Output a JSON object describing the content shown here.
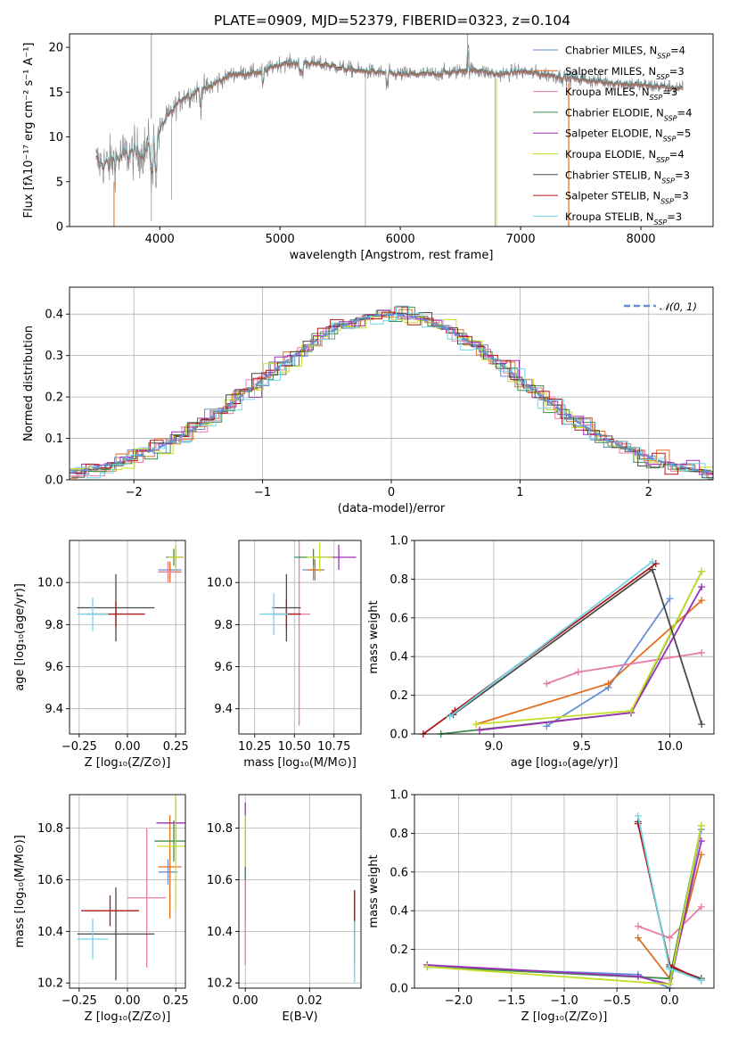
{
  "title": "PLATE=0909, MJD=52379, FIBERID=0323, z=0.104",
  "models": [
    {
      "name": "Chabrier MILES",
      "n": "4",
      "color": "#6790d3"
    },
    {
      "name": "Salpeter MILES",
      "n": "3",
      "color": "#e07020"
    },
    {
      "name": "Kroupa MILES",
      "n": "3",
      "color": "#e87aa8"
    },
    {
      "name": "Chabrier ELODIE",
      "n": "4",
      "color": "#3e8f4e"
    },
    {
      "name": "Salpeter ELODIE",
      "n": "5",
      "color": "#9b2fb5"
    },
    {
      "name": "Kroupa ELODIE",
      "n": "4",
      "color": "#c8dc28"
    },
    {
      "name": "Chabrier STELIB",
      "n": "3",
      "color": "#4a4a4a"
    },
    {
      "name": "Salpeter STELIB",
      "n": "3",
      "color": "#b01818"
    },
    {
      "name": "Kroupa STELIB",
      "n": "3",
      "color": "#72d6e6"
    }
  ],
  "chart_data": [
    {
      "type": "line",
      "xlabel": "wavelength [Angstrom, rest frame]",
      "ylabel": "Flux [fλ10⁻¹⁷ erg cm⁻² s⁻¹ A⁻¹]",
      "xlim": [
        3250,
        8600
      ],
      "ylim": [
        0,
        21.5
      ],
      "xticks": [
        4000,
        5000,
        6000,
        7000,
        8000
      ],
      "yticks": [
        0,
        5,
        10,
        15,
        20
      ],
      "data_color": "#808080",
      "continuum": {
        "x": [
          3470,
          3560,
          3700,
          3850,
          3950,
          4050,
          4200,
          4400,
          4600,
          4860,
          5000,
          5200,
          5400,
          5600,
          5800,
          6000,
          6200,
          6400,
          6600,
          6800,
          7000,
          7200,
          7400,
          7600,
          7800,
          8000,
          8200,
          8350
        ],
        "y": [
          7.2,
          7.0,
          8.0,
          8.3,
          9.5,
          12.0,
          14.5,
          15.5,
          17.0,
          17.3,
          18.2,
          18.3,
          18.0,
          17.5,
          17.2,
          17.0,
          17.0,
          17.2,
          17.5,
          17.0,
          17.3,
          17.0,
          16.6,
          16.3,
          16.0,
          15.8,
          15.6,
          15.4
        ]
      },
      "dips": [
        {
          "x": 3930,
          "y": 0.6
        },
        {
          "x": 4100,
          "y": 3.0
        },
        {
          "x": 5710,
          "y": 0
        },
        {
          "x": 6790,
          "y": 0
        },
        {
          "x": 7400,
          "y": 0
        }
      ]
    },
    {
      "type": "bar",
      "xlabel": "(data-model)/error",
      "ylabel": "Normed distribution",
      "xlim": [
        -2.5,
        2.5
      ],
      "ylim": [
        0,
        0.465
      ],
      "xticks": [
        -2,
        -1,
        0,
        1,
        2
      ],
      "yticks": [
        0.0,
        0.1,
        0.2,
        0.3,
        0.4
      ],
      "legend": "𝒩(0, 1)",
      "legend_position": "top-right",
      "bin_width": 0.1
    },
    {
      "type": "scatter",
      "xlabel": "Z [log₁₀(Z/Z⊙)]",
      "ylabel": "age  [log₁₀(age/yr)]",
      "xlim": [
        -0.3,
        0.3
      ],
      "ylim": [
        9.28,
        10.2
      ],
      "xticks": [
        -0.25,
        0.0,
        0.25
      ],
      "yticks": [
        9.4,
        9.6,
        9.8,
        10.0
      ]
    },
    {
      "type": "scatter",
      "xlabel": "mass [log₁₀(M/M⊙)]",
      "ylabel": "",
      "xlim": [
        10.15,
        10.92
      ],
      "ylim": [
        9.28,
        10.2
      ],
      "xticks": [
        10.25,
        10.5,
        10.75
      ],
      "yticks": [
        9.4,
        9.6,
        9.8,
        10.0
      ]
    },
    {
      "type": "line",
      "xlabel": "age  [log₁₀(age/yr)]",
      "ylabel": "mass weight",
      "xlim": [
        8.55,
        10.25
      ],
      "ylim": [
        0,
        1.0
      ],
      "xticks": [
        9.0,
        9.5,
        10.0
      ],
      "yticks": [
        0.0,
        0.2,
        0.4,
        0.6,
        0.8,
        1.0
      ]
    },
    {
      "type": "scatter",
      "xlabel": "Z [log₁₀(Z/Z⊙)]",
      "ylabel": "mass [log₁₀(M/M⊙)]",
      "xlim": [
        -0.3,
        0.3
      ],
      "ylim": [
        10.18,
        10.93
      ],
      "xticks": [
        -0.25,
        0.0,
        0.25
      ],
      "yticks": [
        10.2,
        10.4,
        10.6,
        10.8
      ]
    },
    {
      "type": "scatter",
      "xlabel": "E(B-V)",
      "ylabel": "",
      "xlim": [
        -0.002,
        0.036
      ],
      "ylim": [
        10.18,
        10.93
      ],
      "xticks": [
        0.0,
        0.02
      ],
      "yticks": [
        10.2,
        10.4,
        10.6,
        10.8
      ]
    },
    {
      "type": "line",
      "xlabel": "Z [log₁₀(Z/Z⊙)]",
      "ylabel": "mass weight",
      "xlim": [
        -2.42,
        0.42
      ],
      "ylim": [
        0,
        1.0
      ],
      "xticks": [
        -2.0,
        -1.5,
        -1.0,
        -0.5,
        0.0
      ],
      "yticks": [
        0.0,
        0.2,
        0.4,
        0.6,
        0.8,
        1.0
      ]
    }
  ],
  "points": {
    "age_Z": [
      [
        0.22,
        10.06,
        0.06,
        0.03
      ],
      [
        0.22,
        10.05,
        0.06,
        0.05
      ],
      [
        0.21,
        10.05,
        0.05,
        0.05
      ],
      [
        0.24,
        10.12,
        0.04,
        0.04
      ],
      [
        0.25,
        10.12,
        0.04,
        0.05
      ],
      [
        0.25,
        10.12,
        0.04,
        0.06
      ],
      [
        -0.06,
        9.88,
        0.2,
        0.16
      ],
      [
        -0.06,
        9.85,
        0.15,
        0.06
      ],
      [
        -0.18,
        9.85,
        0.08,
        0.08
      ]
    ],
    "age_mass": [
      [
        10.62,
        10.06,
        0.07,
        0.05
      ],
      [
        10.63,
        10.06,
        0.05,
        0.05
      ],
      [
        10.53,
        9.85,
        0.07,
        0.53
      ],
      [
        10.62,
        10.12,
        0.12,
        0.04
      ],
      [
        10.78,
        10.12,
        0.11,
        0.06
      ],
      [
        10.66,
        10.12,
        0.08,
        0.07
      ],
      [
        10.45,
        9.88,
        0.09,
        0.16
      ],
      [
        10.45,
        9.85,
        0.09,
        0.07
      ],
      [
        10.37,
        9.85,
        0.09,
        0.1
      ]
    ],
    "mass_Z": [
      [
        0.21,
        10.63,
        0.05,
        0.05
      ],
      [
        0.22,
        10.65,
        0.06,
        0.2
      ],
      [
        0.1,
        10.53,
        0.1,
        0.27
      ],
      [
        0.24,
        10.75,
        0.1,
        0.08
      ],
      [
        0.25,
        10.82,
        0.1,
        0.09
      ],
      [
        0.25,
        10.73,
        0.1,
        0.25
      ],
      [
        -0.06,
        10.39,
        0.2,
        0.18
      ],
      [
        -0.09,
        10.48,
        0.15,
        0.06
      ],
      [
        -0.18,
        10.37,
        0.08,
        0.08
      ]
    ],
    "mass_E": [
      [
        0.0,
        10.65,
        0.0,
        0.2
      ],
      [
        0.0,
        10.55,
        0.0,
        0.12
      ],
      [
        0.0,
        10.47,
        0.0,
        0.2
      ],
      [
        0.0,
        10.7,
        0.0,
        0.1
      ],
      [
        0.0,
        10.82,
        0.0,
        0.08
      ],
      [
        0.0,
        10.75,
        0.0,
        0.1
      ],
      [
        0.034,
        10.42,
        0.0,
        0.14
      ],
      [
        0.034,
        10.46,
        0.0,
        0.1
      ],
      [
        0.034,
        10.32,
        0.0,
        0.12
      ]
    ],
    "w_age": [
      [
        [
          9.3,
          0.04
        ],
        [
          9.65,
          0.24
        ],
        [
          10.0,
          0.7
        ]
      ],
      [
        [
          8.9,
          0.05
        ],
        [
          9.65,
          0.26
        ],
        [
          10.18,
          0.69
        ]
      ],
      [
        [
          9.3,
          0.26
        ],
        [
          9.48,
          0.32
        ],
        [
          10.18,
          0.42
        ]
      ],
      [
        [
          8.7,
          0.0
        ],
        [
          9.78,
          0.11
        ],
        [
          10.18,
          0.84
        ]
      ],
      [
        [
          8.92,
          0.02
        ],
        [
          9.78,
          0.11
        ],
        [
          10.18,
          0.76
        ]
      ],
      [
        [
          8.9,
          0.05
        ],
        [
          9.78,
          0.12
        ],
        [
          10.18,
          0.84
        ]
      ],
      [
        [
          8.77,
          0.1
        ],
        [
          9.9,
          0.85
        ],
        [
          10.18,
          0.05
        ]
      ],
      [
        [
          8.6,
          0.0
        ],
        [
          8.78,
          0.12
        ],
        [
          9.92,
          0.88
        ]
      ],
      [
        [
          8.75,
          0.09
        ],
        [
          9.9,
          0.89
        ]
      ]
    ],
    "w_Z": [
      [
        [
          -2.3,
          0.11
        ],
        [
          -0.3,
          0.07
        ],
        [
          0.0,
          0.0
        ],
        [
          0.3,
          0.82
        ]
      ],
      [
        [
          -0.3,
          0.26
        ],
        [
          0.0,
          0.05
        ],
        [
          0.3,
          0.69
        ]
      ],
      [
        [
          -0.3,
          0.32
        ],
        [
          0.0,
          0.26
        ],
        [
          0.3,
          0.42
        ]
      ],
      [
        [
          -2.3,
          0.11
        ],
        [
          0.0,
          0.05
        ],
        [
          0.3,
          0.84
        ]
      ],
      [
        [
          -2.3,
          0.12
        ],
        [
          -0.3,
          0.06
        ],
        [
          0.0,
          0.02
        ],
        [
          0.3,
          0.76
        ]
      ],
      [
        [
          -2.3,
          0.11
        ],
        [
          0.0,
          0.02
        ],
        [
          0.3,
          0.84
        ]
      ],
      [
        [
          -0.3,
          0.86
        ],
        [
          0.0,
          0.11
        ],
        [
          0.3,
          0.05
        ]
      ],
      [
        [
          -0.3,
          0.85
        ],
        [
          0.0,
          0.12
        ],
        [
          0.3,
          0.04
        ]
      ],
      [
        [
          -0.3,
          0.89
        ],
        [
          0.0,
          0.1
        ],
        [
          0.3,
          0.04
        ]
      ]
    ]
  }
}
